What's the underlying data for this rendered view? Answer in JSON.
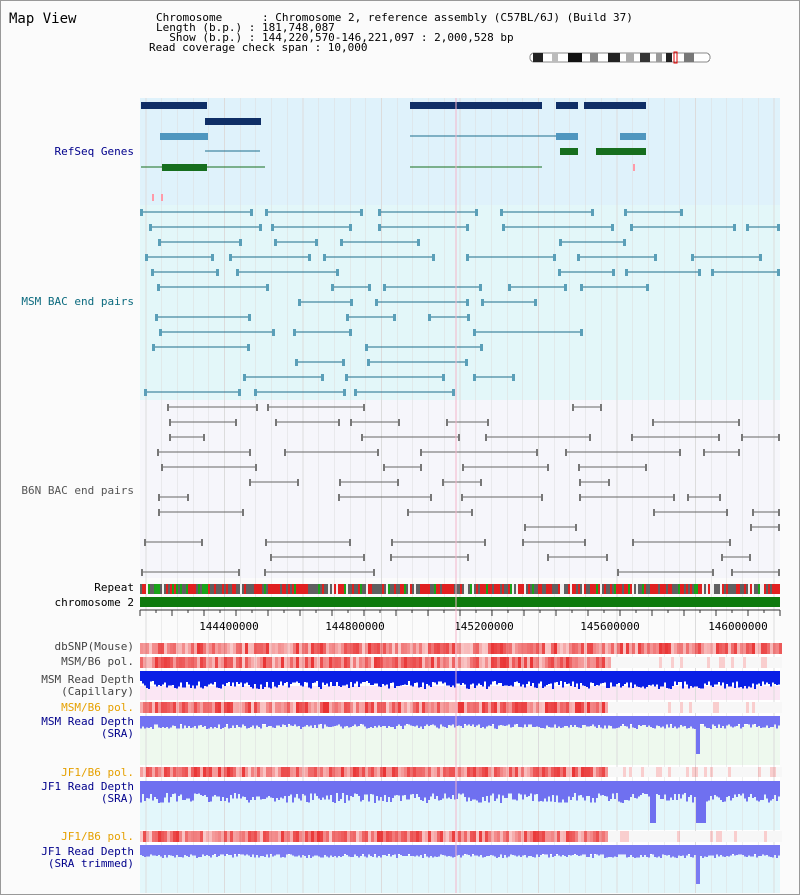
{
  "header": {
    "title": "Map View",
    "info_lines": [
      "Chromosome      : Chromosome 2, reference assembly (C57BL/6J) (Build 37)",
      "Length (b.p.) : 181,748,087",
      "  Show (b.p.) : 144,220,570-146,221,097 : 2,000,528 bp",
      "Read coverage check span : 10,000"
    ]
  },
  "tracks": {
    "refseq": "RefSeq Genes",
    "msm_bac": "MSM BAC end pairs",
    "b6n_bac": "B6N BAC end pairs",
    "repeat": "Repeat",
    "chromosome": "chromosome 2",
    "dbsnp": "dbSNP(Mouse)",
    "msm_b6_pol": "MSM/B6 pol.",
    "msm_depth_cap_1": "MSM Read Depth",
    "msm_depth_cap_2": "(Capillary)",
    "msm_b6_pol2": "MSM/B6 pol.",
    "msm_depth_sra_1": "MSM Read Depth",
    "msm_depth_sra_2": "(SRA)",
    "jf1_b6_pol": "JF1/B6 pol.",
    "jf1_depth_sra_1": "JF1 Read Depth",
    "jf1_depth_sra_2": "(SRA)",
    "jf1_b6_pol2": "JF1/B6 pol.",
    "jf1_depth_trim_1": "JF1 Read Depth",
    "jf1_depth_trim_2": "(SRA trimmed)"
  },
  "axis": {
    "ticks": [
      "144400000",
      "144800000",
      "145200000",
      "145600000",
      "146000000"
    ]
  },
  "colors": {
    "refseq_bg": "#dff2fb",
    "msm_bg": "#e3f7f9",
    "b6n_bg": "#f6f6fb",
    "gene_dark": "#0f2e66",
    "gene_light": "#4f96bf",
    "gene_green": "#166e1e",
    "msm_line": "#1d6e8c",
    "b6n_line": "#666666",
    "chrom_green": "#0d7a0d",
    "depth_blue_dark": "#0a1fe6",
    "depth_blue_light": "#7273f2",
    "pol_red": "#e83a3a",
    "label_blue": "#00008b",
    "label_teal": "#0b6a7e",
    "label_orange": "#e5a000"
  }
}
